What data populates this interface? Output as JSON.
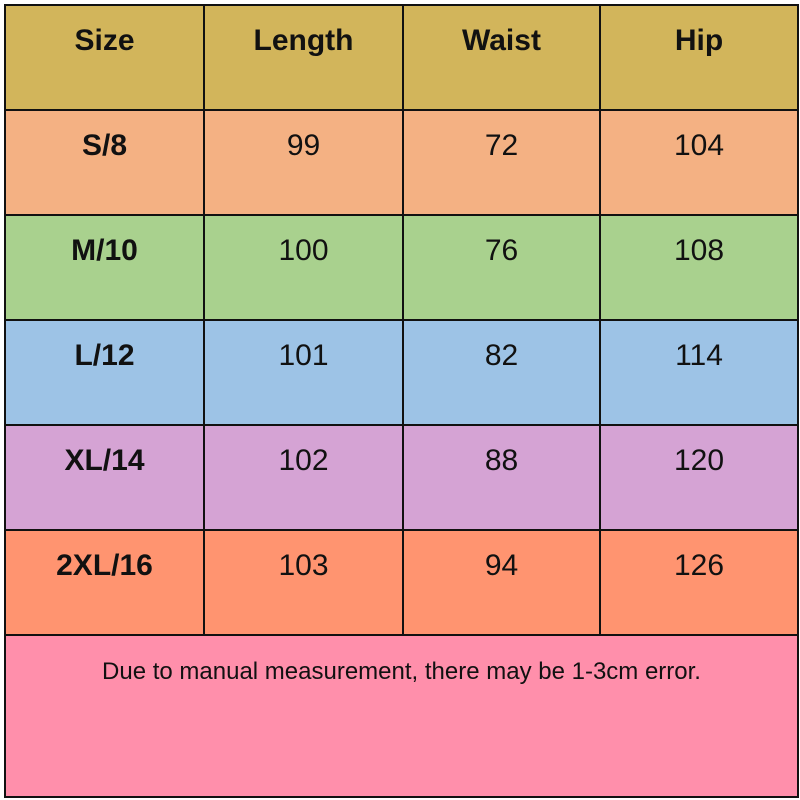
{
  "headers": [
    "Size",
    "Length",
    "Waist",
    "Hip"
  ],
  "rows": [
    {
      "size": "S/8",
      "length": "99",
      "waist": "72",
      "hip": "104",
      "color": "#f4b183"
    },
    {
      "size": "M/10",
      "length": "100",
      "waist": "76",
      "hip": "108",
      "color": "#a9d18e"
    },
    {
      "size": "L/12",
      "length": "101",
      "waist": "82",
      "hip": "114",
      "color": "#9dc3e6"
    },
    {
      "size": "XL/14",
      "length": "102",
      "waist": "88",
      "hip": "120",
      "color": "#d5a3d4"
    },
    {
      "size": "2XL/16",
      "length": "103",
      "waist": "94",
      "hip": "126",
      "color": "#ff9470"
    }
  ],
  "header_color": "#d2b55b",
  "note": "Due to manual measurement, there may be 1-3cm error.",
  "note_color": "#ff8fab"
}
